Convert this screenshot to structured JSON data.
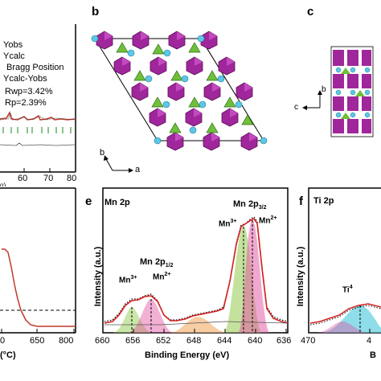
{
  "panel_a": {
    "legend": [
      "Yobs",
      "Ycalc",
      "Bragg Position",
      "Ycalc-Yobs"
    ],
    "rwp": "Rwp=3.42%",
    "rp": "Rp=2.39%",
    "x_ticks": [
      "60",
      "70",
      "80"
    ],
    "x_title_fragment": "o)"
  },
  "panel_b": {
    "label": "b",
    "axis_b": "b",
    "axis_a": "a"
  },
  "panel_c": {
    "label": "c",
    "axis_b": "b",
    "axis_c": "c"
  },
  "panel_d": {
    "x_ticks": [
      "0",
      "650",
      "800"
    ],
    "x_title_fragment": "(°C)"
  },
  "panel_e": {
    "label": "e",
    "title": "Mn 2p",
    "ylabel": "Intensity (a.u.)",
    "xlabel": "Binding Energy (eV)",
    "x_ticks": [
      "660",
      "656",
      "652",
      "648",
      "644",
      "640",
      "636"
    ],
    "annotations": {
      "mn2p12": "Mn 2p",
      "mn2p12_sub": "1/2",
      "mn2p32": "Mn 2p",
      "mn2p32_sub": "3/2",
      "mn3_left": "Mn",
      "mn3_left_sup": "3+",
      "mn2_left": "Mn",
      "mn2_left_sup": "2+",
      "mn3_right": "Mn",
      "mn3_right_sup": "3+",
      "mn2_right": "Mn",
      "mn2_right_sup": "2+"
    }
  },
  "panel_f": {
    "label": "f",
    "title": "Ti 2p",
    "ylabel": "Intensity (a.u.)",
    "x_ticks": [
      "470",
      "4"
    ],
    "xlabel_fragment": "B",
    "annotation": "Ti",
    "annotation_sup": "4"
  },
  "colors": {
    "fit_red": "#d42020",
    "mn3_green": "#9ccf5e",
    "mn2_pink": "#e24fa0",
    "sat_orange": "#f5b87e",
    "ti_cyan": "#5fcfe0",
    "purple": "#a0269b",
    "cyan_atom": "#5ac8e6"
  }
}
